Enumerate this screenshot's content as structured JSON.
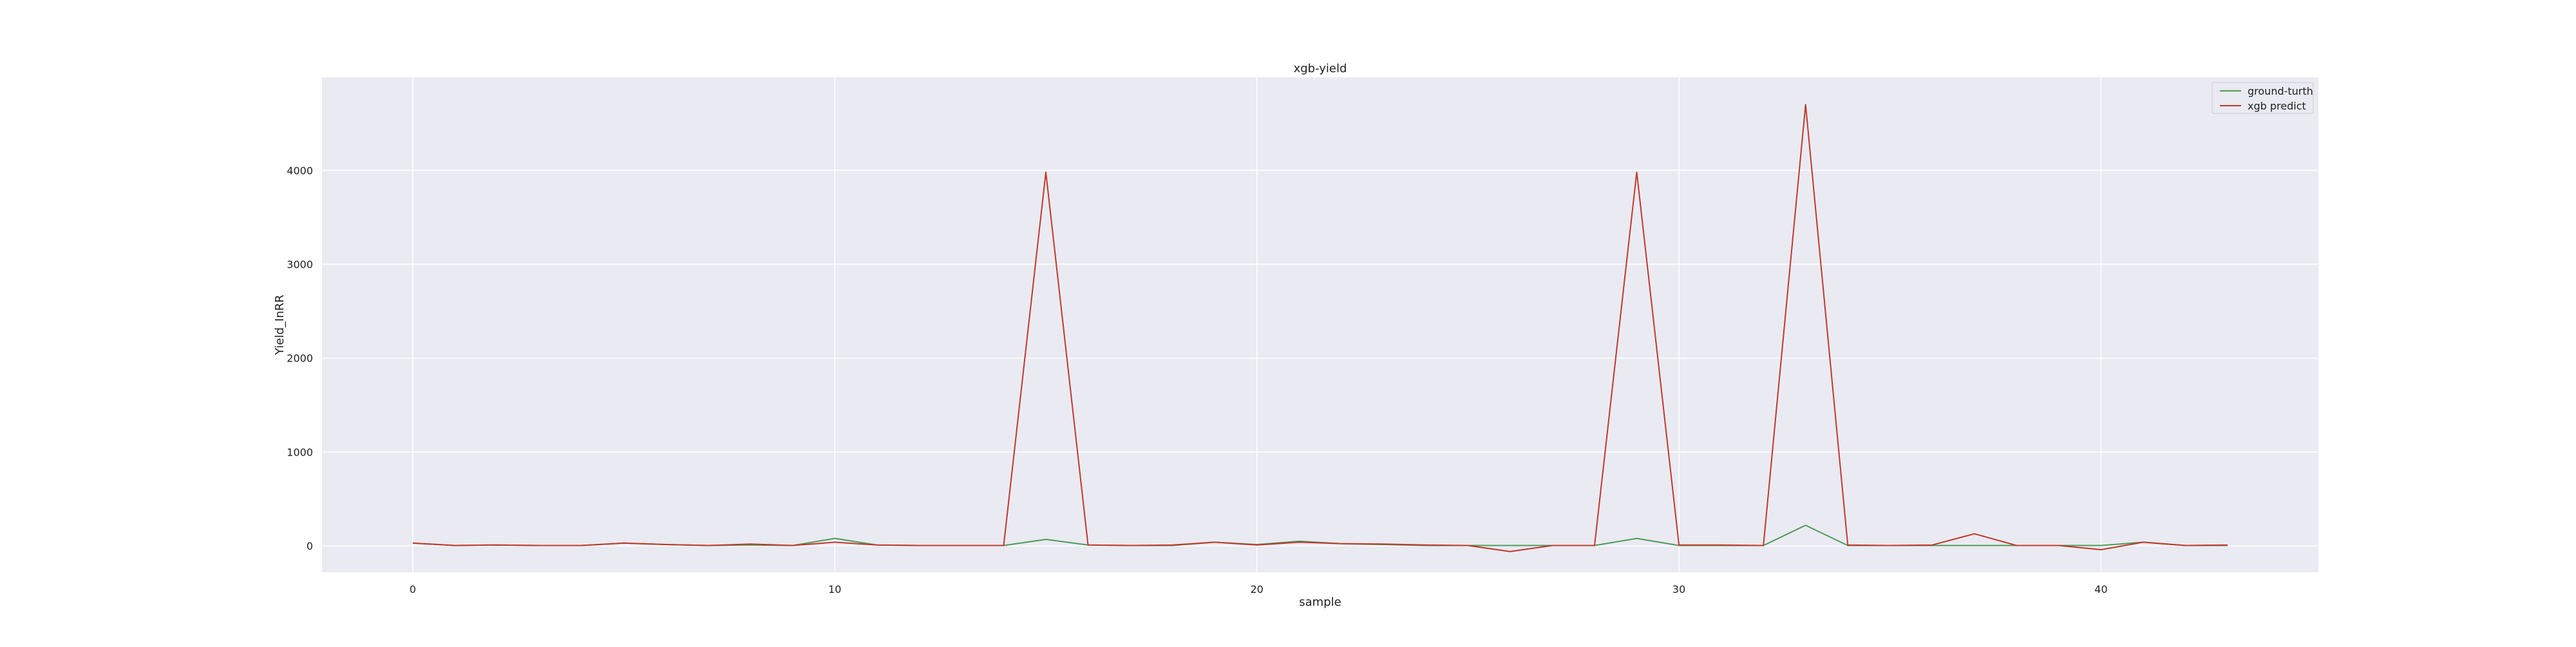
{
  "chart_data": {
    "type": "line",
    "title": "xgb-yield",
    "xlabel": "sample",
    "ylabel": "Yield_InRR",
    "grid": true,
    "legend_position": "top-right",
    "xlim": [
      -2.15,
      45.15
    ],
    "ylim": [
      -280,
      4990
    ],
    "x_ticks": [
      0,
      10,
      20,
      30,
      40
    ],
    "y_ticks": [
      0,
      1000,
      2000,
      3000,
      4000
    ],
    "x": [
      0,
      1,
      2,
      3,
      4,
      5,
      6,
      7,
      8,
      9,
      10,
      11,
      12,
      13,
      14,
      15,
      16,
      17,
      18,
      19,
      20,
      21,
      22,
      23,
      24,
      25,
      26,
      27,
      28,
      29,
      30,
      31,
      32,
      33,
      34,
      35,
      36,
      37,
      38,
      39,
      40,
      41,
      42,
      43
    ],
    "series": [
      {
        "name": "ground-turth",
        "color": "#4c9a5a",
        "values": [
          30,
          5,
          10,
          5,
          5,
          30,
          15,
          5,
          10,
          5,
          80,
          10,
          5,
          5,
          5,
          70,
          10,
          5,
          5,
          40,
          15,
          50,
          25,
          15,
          5,
          5,
          5,
          5,
          5,
          80,
          5,
          5,
          5,
          220,
          5,
          5,
          5,
          5,
          5,
          5,
          5,
          40,
          5,
          5
        ]
      },
      {
        "name": "xgb predict",
        "color": "#c0392b",
        "values": [
          30,
          5,
          10,
          5,
          5,
          30,
          15,
          5,
          20,
          5,
          40,
          10,
          5,
          5,
          5,
          3980,
          10,
          5,
          10,
          40,
          10,
          40,
          25,
          20,
          10,
          5,
          -60,
          5,
          5,
          3980,
          10,
          10,
          5,
          4700,
          10,
          5,
          10,
          130,
          5,
          5,
          -40,
          40,
          5,
          10
        ]
      }
    ]
  }
}
